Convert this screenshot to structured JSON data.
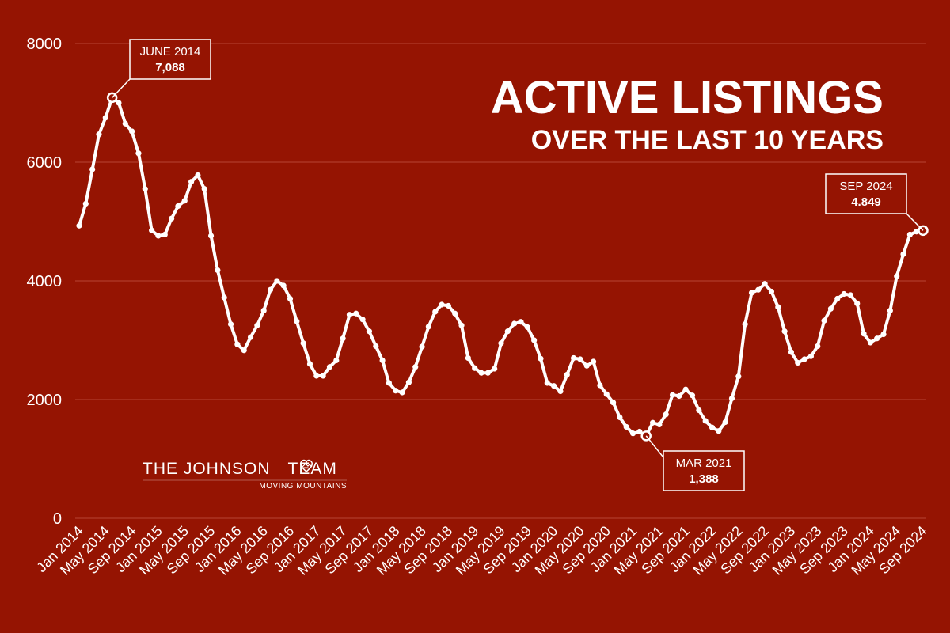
{
  "chart_data": {
    "type": "line",
    "title": "ACTIVE LISTINGS",
    "subtitle": "OVER THE LAST 10 YEARS",
    "ylim": [
      0,
      8000
    ],
    "yticks": [
      0,
      2000,
      4000,
      6000,
      8000
    ],
    "xtick_labels": [
      "Jan 2014",
      "May 2014",
      "Sep 2014",
      "Jan 2015",
      "May 2015",
      "Sep 2015",
      "Jan 2016",
      "May 2016",
      "Sep 2016",
      "Jan 2017",
      "May 2017",
      "Sep 2017",
      "Jan 2018",
      "May 2018",
      "Sep 2018",
      "Jan 2019",
      "May 2019",
      "Sep 2019",
      "Jan 2020",
      "May 2020",
      "Sep 2020",
      "Jan 2021",
      "May 2021",
      "Sep 2021",
      "Jan 2022",
      "May 2022",
      "Sep 2022",
      "Jan 2023",
      "May 2023",
      "Sep 2023",
      "Jan 2024",
      "May 2024",
      "Sep 2024"
    ],
    "series": [
      {
        "values": [
          4930,
          5300,
          5880,
          6470,
          6750,
          7088,
          7000,
          6650,
          6520,
          6150,
          5550,
          4850,
          4760,
          4780,
          5050,
          5260,
          5350,
          5670,
          5780,
          5550,
          4760,
          4180,
          3720,
          3270,
          2930,
          2830,
          3050,
          3250,
          3500,
          3850,
          4000,
          3920,
          3700,
          3320,
          2950,
          2600,
          2400,
          2400,
          2550,
          2660,
          3030,
          3430,
          3450,
          3350,
          3150,
          2900,
          2660,
          2280,
          2150,
          2120,
          2290,
          2550,
          2890,
          3230,
          3480,
          3600,
          3580,
          3450,
          3250,
          2700,
          2530,
          2450,
          2450,
          2520,
          2950,
          3150,
          3280,
          3310,
          3220,
          3000,
          2690,
          2280,
          2230,
          2140,
          2420,
          2700,
          2680,
          2570,
          2640,
          2240,
          2090,
          1950,
          1700,
          1540,
          1430,
          1460,
          1388,
          1610,
          1580,
          1750,
          2080,
          2060,
          2170,
          2070,
          1820,
          1640,
          1530,
          1470,
          1620,
          2020,
          2390,
          3270,
          3800,
          3850,
          3950,
          3820,
          3560,
          3150,
          2800,
          2620,
          2680,
          2730,
          2900,
          3330,
          3530,
          3700,
          3780,
          3760,
          3620,
          3110,
          2960,
          3030,
          3100,
          3500,
          4080,
          4450,
          4780,
          4830,
          4849
        ]
      }
    ],
    "annotations": [
      {
        "label": "JUNE 2014",
        "value": "7,088",
        "index": 5
      },
      {
        "label": "MAR 2021",
        "value": "1,388",
        "index": 86
      },
      {
        "label": "SEP 2024",
        "value": "4.849",
        "index": 128
      }
    ],
    "grid": true,
    "legend": "none"
  },
  "logo": {
    "name": "THE JOHNSON",
    "name_suffix": "TEAM",
    "tagline": "MOVING MOUNTAINS",
    "icon": "heart-mountain-icon"
  },
  "colors": {
    "background": "#951402",
    "line": "#ffffff"
  }
}
